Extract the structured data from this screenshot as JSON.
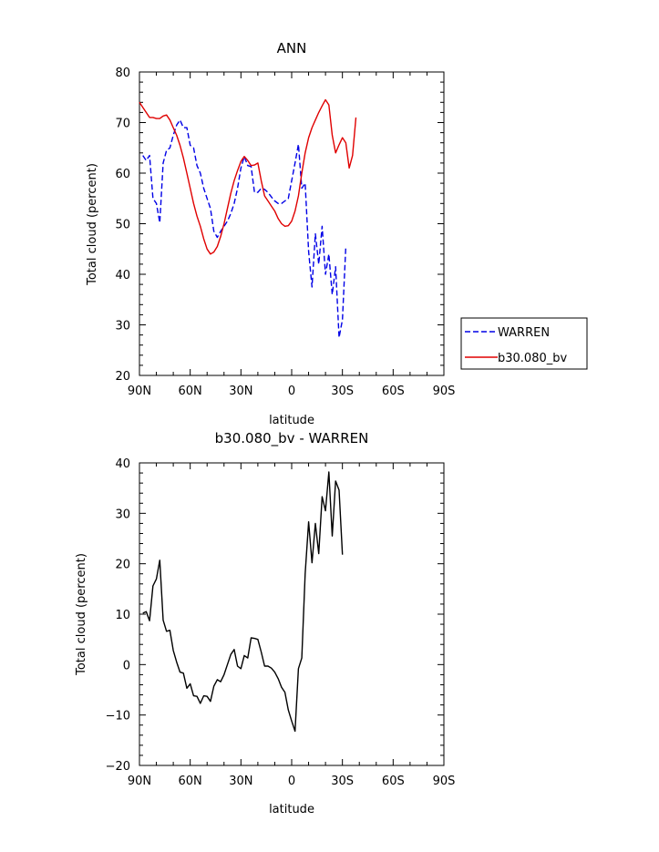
{
  "chart_data": [
    {
      "type": "line",
      "title": "ANN",
      "xlabel": "latitude",
      "ylabel": "Total cloud (percent)",
      "xlim": [
        90,
        -90
      ],
      "ylim": [
        20,
        80
      ],
      "x_ticks": [
        {
          "value": 90,
          "label": "90N"
        },
        {
          "value": 60,
          "label": "60N"
        },
        {
          "value": 30,
          "label": "30N"
        },
        {
          "value": 0,
          "label": "0"
        },
        {
          "value": -30,
          "label": "30S"
        },
        {
          "value": -60,
          "label": "60S"
        },
        {
          "value": -90,
          "label": "90S"
        }
      ],
      "y_ticks": [
        20,
        30,
        40,
        50,
        60,
        70,
        80
      ],
      "grid": false,
      "legend_position": "right",
      "series": [
        {
          "name": "WARREN",
          "color": "#0000e6",
          "style": "dashed",
          "x": [
            88,
            86,
            84,
            82,
            80,
            78,
            76,
            74,
            72,
            70,
            68,
            66,
            64,
            62,
            60,
            58,
            56,
            54,
            52,
            50,
            48,
            46,
            44,
            42,
            40,
            38,
            36,
            34,
            32,
            30,
            28,
            26,
            24,
            22,
            20,
            18,
            16,
            14,
            12,
            10,
            8,
            6,
            4,
            2,
            0,
            -2,
            -4,
            -6,
            -8,
            -10,
            -12,
            -14,
            -16,
            -18,
            -20,
            -22,
            -24,
            -26,
            -28,
            -30,
            -32,
            -34,
            -36,
            -38,
            -40,
            -42,
            -44,
            -46,
            -48,
            -50,
            -52,
            -54,
            -56,
            -58,
            -60,
            -62,
            -64,
            -66,
            -68,
            -70,
            -72,
            -74,
            -76
          ],
          "y": [
            63.5,
            62.5,
            63.5,
            55,
            54,
            50.2,
            62,
            64.5,
            65,
            67.5,
            69.5,
            70.5,
            69,
            69,
            65.5,
            65,
            61.5,
            60,
            57,
            55,
            53,
            48.5,
            47.3,
            48.5,
            49.5,
            50.5,
            52,
            54,
            57,
            61,
            63.3,
            61.5,
            61.3,
            56.2,
            56.2,
            57,
            56.8,
            56.2,
            55.3,
            54.5,
            54,
            54,
            54.5,
            55,
            58.5,
            62,
            65.7,
            57,
            58,
            44.5,
            37.5,
            48,
            42,
            49.5,
            40,
            44,
            36,
            41.5,
            27.5,
            31,
            45.5,
            null,
            null,
            null,
            null,
            null,
            null,
            null,
            null,
            null,
            null,
            null,
            null,
            null,
            null,
            null,
            null,
            null,
            null,
            null,
            null,
            null,
            null
          ]
        },
        {
          "name": "b30.080_bv",
          "color": "#e00000",
          "style": "solid",
          "x": [
            90,
            88,
            86,
            84,
            82,
            80,
            78,
            76,
            74,
            72,
            70,
            68,
            66,
            64,
            62,
            60,
            58,
            56,
            54,
            52,
            50,
            48,
            46,
            44,
            42,
            40,
            38,
            36,
            34,
            32,
            30,
            28,
            26,
            24,
            22,
            20,
            18,
            16,
            14,
            12,
            10,
            8,
            6,
            4,
            2,
            0,
            -2,
            -4,
            -6,
            -8,
            -10,
            -12,
            -14,
            -16,
            -18,
            -20,
            -22,
            -24,
            -26,
            -28,
            -30,
            -32,
            -34,
            -36,
            -38,
            -40,
            -42,
            -44,
            -46,
            -48,
            -50,
            -52,
            -54,
            -56,
            -58,
            -60,
            -62,
            -64,
            -66,
            -68,
            -70,
            -72,
            -74,
            -76,
            -78,
            -80,
            -82,
            -84,
            -86,
            -88
          ],
          "y": [
            74,
            73,
            72,
            71,
            71,
            70.8,
            70.8,
            71.3,
            71.5,
            70.5,
            69,
            67.5,
            65.5,
            63,
            60,
            57,
            54,
            51.5,
            49.5,
            47,
            45,
            44,
            44.4,
            45.5,
            47.5,
            50,
            53,
            56,
            58.5,
            60.5,
            62.3,
            63.3,
            62.5,
            61.5,
            61.6,
            62,
            58.5,
            55.5,
            54.5,
            53.5,
            52.5,
            51,
            50,
            49.5,
            49.6,
            50.5,
            52.5,
            55.5,
            60,
            64,
            67,
            69,
            70.5,
            72,
            73.3,
            74.5,
            73.5,
            67.5,
            64,
            65.6,
            67,
            66,
            61,
            63.5,
            71,
            null,
            null,
            null,
            null,
            null,
            null,
            null,
            null,
            null,
            null,
            null,
            null,
            null,
            null,
            null,
            null,
            null,
            null,
            null,
            null,
            null,
            null,
            null,
            null,
            null
          ]
        }
      ]
    },
    {
      "type": "line",
      "title": "b30.080_bv - WARREN",
      "xlabel": "latitude",
      "ylabel": "Total cloud (percent)",
      "xlim": [
        90,
        -90
      ],
      "ylim": [
        -20,
        40
      ],
      "x_ticks": [
        {
          "value": 90,
          "label": "90N"
        },
        {
          "value": 60,
          "label": "60N"
        },
        {
          "value": 30,
          "label": "30N"
        },
        {
          "value": 0,
          "label": "0"
        },
        {
          "value": -30,
          "label": "30S"
        },
        {
          "value": -60,
          "label": "60S"
        },
        {
          "value": -90,
          "label": "90S"
        }
      ],
      "y_ticks": [
        -20,
        -10,
        0,
        10,
        20,
        30,
        40
      ],
      "grid": false,
      "series": [
        {
          "name": "",
          "color": "#000000",
          "style": "solid",
          "x": [
            88,
            86,
            84,
            82,
            80,
            78,
            76,
            74,
            72,
            70,
            68,
            66,
            64,
            62,
            60,
            58,
            56,
            54,
            52,
            50,
            48,
            46,
            44,
            42,
            40,
            38,
            36,
            34,
            32,
            30,
            28,
            26,
            24,
            22,
            20,
            18,
            16,
            14,
            12,
            10,
            8,
            6,
            4,
            2,
            0,
            -2,
            -4,
            -6,
            -8,
            -10,
            -12,
            -14,
            -16,
            -18,
            -20,
            -22,
            -24,
            -26,
            -28,
            -30,
            -32,
            -34,
            -36,
            -38,
            -40,
            -42,
            -44,
            -46,
            -48,
            -50,
            -52,
            -54,
            -56,
            -58,
            -60,
            -62,
            -64,
            -66,
            -68,
            -70,
            -72,
            -74,
            -76
          ],
          "y": [
            10.2,
            10.5,
            8.7,
            15.6,
            17,
            20.7,
            8.8,
            6.6,
            6.8,
            2.8,
            0.5,
            -1.5,
            -1.7,
            -4.7,
            -3.8,
            -6.2,
            -6.3,
            -7.7,
            -6.2,
            -6.3,
            -7.3,
            -4.3,
            -3,
            -3.4,
            -2,
            0,
            2,
            3,
            -0.3,
            -0.8,
            1.8,
            1.3,
            5.3,
            5.2,
            5,
            2.5,
            -0.3,
            -0.3,
            -0.7,
            -1.5,
            -2.8,
            -4.5,
            -5.5,
            -9,
            -11.2,
            -13.2,
            -0.8,
            1.3,
            18,
            28.3,
            20.2,
            28,
            22,
            33.3,
            30.5,
            38.2,
            25.5,
            36.4,
            34.6,
            21.8,
            null,
            null,
            null,
            null,
            null,
            null,
            null,
            null,
            null,
            null,
            null,
            null,
            null,
            null,
            null,
            null,
            null,
            null,
            null,
            null,
            null,
            null,
            null
          ]
        }
      ]
    }
  ]
}
